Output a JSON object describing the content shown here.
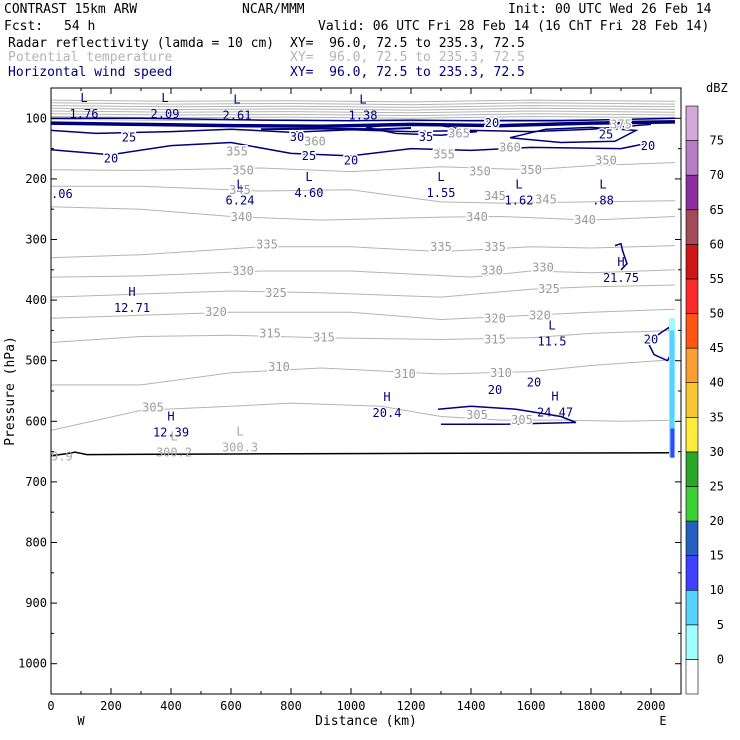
{
  "header": {
    "model": "CONTRAST 15km ARW",
    "org": "NCAR/MMM",
    "init": "Init: 00 UTC Wed 26 Feb 14",
    "fcst_label": "Fcst:",
    "fcst_value": "54 h",
    "valid": "Valid: 06 UTC Fri 28 Feb 14 (16 ChT Fri 28 Feb 14)",
    "fields": [
      {
        "name": "Radar reflectivity (lamda = 10 cm)",
        "xy": "XY=  96.0, 72.5 to 235.3, 72.5",
        "color": "#000000"
      },
      {
        "name": "Potential temperature",
        "xy": "XY=  96.0, 72.5 to 235.3, 72.5",
        "color": "#b4b4b4"
      },
      {
        "name": "Horizontal wind speed",
        "xy": "XY=  96.0, 72.5 to 235.3, 72.5",
        "color": "#00007a"
      }
    ]
  },
  "chart_data": {
    "type": "vertical cross-section (contour)",
    "xlabel": "Distance (km)",
    "ylabel": "Pressure (hPa)",
    "xlim": [
      0,
      2100
    ],
    "ylim": [
      1050,
      50
    ],
    "x_ticks": [
      0,
      200,
      400,
      600,
      800,
      1000,
      1200,
      1400,
      1600,
      1800,
      2000
    ],
    "y_ticks": [
      100,
      200,
      300,
      400,
      500,
      600,
      700,
      800,
      900,
      1000
    ],
    "endpoints": {
      "west": "W",
      "east": "E"
    },
    "colorbar": {
      "unit": "dBZ",
      "levels": [
        0,
        5,
        10,
        15,
        20,
        25,
        30,
        35,
        40,
        45,
        50,
        55,
        60,
        65,
        70,
        75
      ],
      "colors": [
        "#ffffff",
        "#9ffcff",
        "#5ad2ff",
        "#3e41ff",
        "#2660be",
        "#3cd034",
        "#29a729",
        "#ffeb3c",
        "#f7c733",
        "#fa9d33",
        "#ff5616",
        "#fd2b2b",
        "#cd1717",
        "#a54a58",
        "#8d2ea1",
        "#b77cc4",
        "#d5a9d7"
      ]
    },
    "theta_contours": [
      {
        "value": 350,
        "points": [
          [
            0,
            185
          ],
          [
            300,
            186
          ],
          [
            700,
            182
          ],
          [
            1000,
            188
          ],
          [
            1300,
            180
          ],
          [
            1600,
            185
          ],
          [
            1800,
            178
          ],
          [
            2080,
            173
          ]
        ]
      },
      {
        "value": 345,
        "points": [
          [
            0,
            212
          ],
          [
            300,
            212
          ],
          [
            700,
            220
          ],
          [
            1000,
            218
          ],
          [
            1300,
            238
          ],
          [
            1500,
            240
          ],
          [
            1800,
            238
          ],
          [
            2080,
            236
          ]
        ]
      },
      {
        "value": 340,
        "points": [
          [
            0,
            246
          ],
          [
            300,
            250
          ],
          [
            600,
            262
          ],
          [
            900,
            268
          ],
          [
            1300,
            263
          ],
          [
            1500,
            262
          ],
          [
            1800,
            268
          ],
          [
            2080,
            262
          ]
        ]
      },
      {
        "value": 335,
        "points": [
          [
            0,
            330
          ],
          [
            300,
            325
          ],
          [
            700,
            312
          ],
          [
            1000,
            312
          ],
          [
            1300,
            320
          ],
          [
            1600,
            312
          ],
          [
            1800,
            314
          ],
          [
            2080,
            310
          ]
        ]
      },
      {
        "value": 330,
        "points": [
          [
            0,
            362
          ],
          [
            300,
            360
          ],
          [
            700,
            352
          ],
          [
            1000,
            352
          ],
          [
            1400,
            362
          ],
          [
            1600,
            352
          ],
          [
            1800,
            355
          ],
          [
            2080,
            350
          ]
        ]
      },
      {
        "value": 325,
        "points": [
          [
            0,
            395
          ],
          [
            300,
            390
          ],
          [
            600,
            385
          ],
          [
            900,
            388
          ],
          [
            1300,
            395
          ],
          [
            1600,
            382
          ],
          [
            1800,
            378
          ],
          [
            2080,
            375
          ]
        ]
      },
      {
        "value": 320,
        "points": [
          [
            0,
            430
          ],
          [
            300,
            425
          ],
          [
            600,
            420
          ],
          [
            1000,
            420
          ],
          [
            1300,
            432
          ],
          [
            1600,
            425
          ],
          [
            1800,
            420
          ],
          [
            2080,
            415
          ]
        ]
      },
      {
        "value": 315,
        "points": [
          [
            0,
            470
          ],
          [
            300,
            460
          ],
          [
            600,
            458
          ],
          [
            900,
            462
          ],
          [
            1300,
            465
          ],
          [
            1600,
            462
          ],
          [
            1800,
            455
          ],
          [
            2080,
            450
          ]
        ]
      },
      {
        "value": 310,
        "points": [
          [
            0,
            540
          ],
          [
            300,
            540
          ],
          [
            600,
            520
          ],
          [
            900,
            512
          ],
          [
            1300,
            522
          ],
          [
            1600,
            518
          ],
          [
            1800,
            508
          ],
          [
            2080,
            498
          ]
        ]
      },
      {
        "value": 305,
        "points": [
          [
            0,
            615
          ],
          [
            300,
            582
          ],
          [
            600,
            575
          ],
          [
            800,
            570
          ],
          [
            1100,
            575
          ],
          [
            1300,
            592
          ],
          [
            1500,
            598
          ],
          [
            1700,
            598
          ],
          [
            1900,
            600
          ],
          [
            2080,
            598
          ]
        ]
      }
    ],
    "wind_contours": [
      {
        "value": 20,
        "points": [
          [
            0,
            100
          ],
          [
            300,
            100
          ],
          [
            700,
            103
          ],
          [
            1000,
            104
          ],
          [
            1200,
            103
          ],
          [
            1400,
            104
          ],
          [
            1700,
            104
          ],
          [
            2080,
            100
          ]
        ]
      },
      {
        "value": 25,
        "points": [
          [
            0,
            120
          ],
          [
            150,
            125
          ],
          [
            400,
            122
          ],
          [
            600,
            118
          ],
          [
            800,
            123
          ],
          [
            1000,
            119
          ],
          [
            1200,
            122
          ],
          [
            1400,
            120
          ],
          [
            1600,
            122
          ],
          [
            1800,
            118
          ],
          [
            2000,
            110
          ]
        ]
      },
      {
        "value": 20,
        "points": [
          [
            0,
            152
          ],
          [
            200,
            160
          ],
          [
            400,
            145
          ],
          [
            600,
            140
          ],
          [
            800,
            158
          ],
          [
            1000,
            162
          ],
          [
            1200,
            150
          ],
          [
            1400,
            153
          ],
          [
            1600,
            148
          ],
          [
            1900,
            150
          ],
          [
            2000,
            140
          ]
        ]
      },
      {
        "value": 20,
        "points": [
          [
            1290,
            580
          ],
          [
            1400,
            575
          ],
          [
            1550,
            580
          ],
          [
            1700,
            592
          ],
          [
            1750,
            602
          ],
          [
            1500,
            605
          ],
          [
            1300,
            605
          ]
        ]
      }
    ],
    "theta_labels": [
      {
        "text": "375",
        "x": 1900,
        "y": 110
      },
      {
        "text": "365",
        "x": 1360,
        "y": 125
      },
      {
        "text": "360",
        "x": 880,
        "y": 138
      },
      {
        "text": "360",
        "x": 1530,
        "y": 148
      },
      {
        "text": "355",
        "x": 620,
        "y": 155
      },
      {
        "text": "355",
        "x": 1310,
        "y": 160
      },
      {
        "text": "350",
        "x": 640,
        "y": 186
      },
      {
        "text": "350",
        "x": 1430,
        "y": 188
      },
      {
        "text": "350",
        "x": 1600,
        "y": 185
      },
      {
        "text": "350",
        "x": 1850,
        "y": 170
      },
      {
        "text": "345",
        "x": 630,
        "y": 218
      },
      {
        "text": "345",
        "x": 1480,
        "y": 228
      },
      {
        "text": "345",
        "x": 1650,
        "y": 234
      },
      {
        "text": "340",
        "x": 635,
        "y": 263
      },
      {
        "text": "340",
        "x": 1420,
        "y": 263
      },
      {
        "text": "340",
        "x": 1780,
        "y": 268
      },
      {
        "text": "335",
        "x": 720,
        "y": 308
      },
      {
        "text": "335",
        "x": 1300,
        "y": 312
      },
      {
        "text": "335",
        "x": 1480,
        "y": 312
      },
      {
        "text": "330",
        "x": 640,
        "y": 352
      },
      {
        "text": "330",
        "x": 1470,
        "y": 351
      },
      {
        "text": "330",
        "x": 1640,
        "y": 346
      },
      {
        "text": "325",
        "x": 750,
        "y": 388
      },
      {
        "text": "325",
        "x": 1660,
        "y": 382
      },
      {
        "text": "320",
        "x": 550,
        "y": 420
      },
      {
        "text": "320",
        "x": 1480,
        "y": 430
      },
      {
        "text": "320",
        "x": 1630,
        "y": 425
      },
      {
        "text": "315",
        "x": 730,
        "y": 455
      },
      {
        "text": "315",
        "x": 910,
        "y": 462
      },
      {
        "text": "315",
        "x": 1480,
        "y": 465
      },
      {
        "text": "310",
        "x": 760,
        "y": 510
      },
      {
        "text": "310",
        "x": 1180,
        "y": 522
      },
      {
        "text": "310",
        "x": 1500,
        "y": 520
      },
      {
        "text": "305",
        "x": 340,
        "y": 577
      },
      {
        "text": "305",
        "x": 1420,
        "y": 590
      },
      {
        "text": "305",
        "x": 1570,
        "y": 598
      }
    ],
    "wind_labels": [
      {
        "text": "25",
        "x": 260,
        "y": 132
      },
      {
        "text": "30",
        "x": 820,
        "y": 131
      },
      {
        "text": "35",
        "x": 1250,
        "y": 131
      },
      {
        "text": "25",
        "x": 860,
        "y": 162
      },
      {
        "text": "20",
        "x": 200,
        "y": 166
      },
      {
        "text": "20",
        "x": 1000,
        "y": 170
      },
      {
        "text": "20",
        "x": 1470,
        "y": 108
      },
      {
        "text": "25",
        "x": 1850,
        "y": 127
      },
      {
        "text": "20",
        "x": 1990,
        "y": 146
      },
      {
        "text": "20",
        "x": 2000,
        "y": 465
      },
      {
        "text": "20",
        "x": 1480,
        "y": 548
      },
      {
        "text": "20",
        "x": 1610,
        "y": 536
      }
    ],
    "extrema": [
      {
        "type": "L",
        "value": "1.76",
        "x": 110,
        "y": 90
      },
      {
        "type": "L",
        "value": "2.09",
        "x": 380,
        "y": 90
      },
      {
        "type": "L",
        "value": "2.61",
        "x": 620,
        "y": 92
      },
      {
        "type": "L",
        "value": "1.38",
        "x": 1040,
        "y": 92
      },
      {
        "type": "L",
        "value": ".06",
        "x": 0,
        "y": 222
      },
      {
        "type": "L",
        "value": "4.60",
        "x": 860,
        "y": 220
      },
      {
        "type": "L",
        "value": "6.24",
        "x": 630,
        "y": 232
      },
      {
        "type": "L",
        "value": "1.55",
        "x": 1300,
        "y": 220
      },
      {
        "type": "L",
        "value": "1.62",
        "x": 1560,
        "y": 232
      },
      {
        "type": "L",
        "value": ".88",
        "x": 1840,
        "y": 232
      },
      {
        "type": "H",
        "value": "21.75",
        "x": 1900,
        "y": 360
      },
      {
        "type": "H",
        "value": "12.71",
        "x": 270,
        "y": 410
      },
      {
        "type": "L",
        "value": "11.5",
        "x": 1670,
        "y": 465
      },
      {
        "type": "H",
        "value": "20.4",
        "x": 1120,
        "y": 583
      },
      {
        "type": "H",
        "value": "24.47",
        "x": 1680,
        "y": 582
      },
      {
        "type": "H",
        "value": "12.39",
        "x": 400,
        "y": 615
      },
      {
        "type": "L",
        "value": "300.2",
        "x": 410,
        "y": 648
      },
      {
        "type": "L",
        "value": "300.3",
        "x": 630,
        "y": 640
      },
      {
        "type": "L",
        "value": "9.9",
        "x": 0,
        "y": 655
      }
    ]
  }
}
